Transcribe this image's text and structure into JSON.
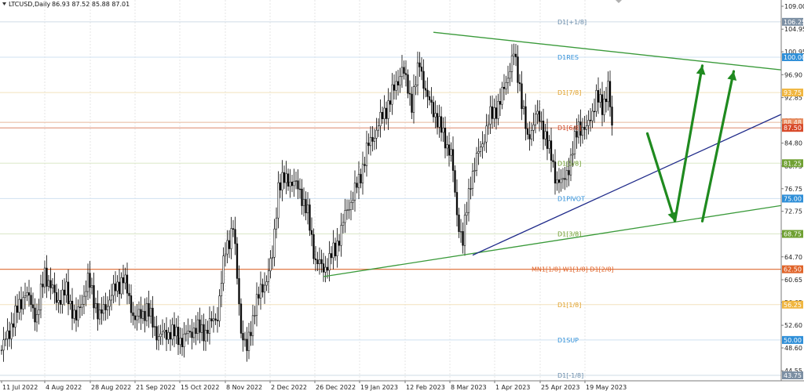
{
  "header": {
    "symbol": "LTCUSD,Daily",
    "ohlc": "86.93 87.52 85.88 87.01"
  },
  "chart_data": {
    "type": "candlestick",
    "title": "",
    "ylim": [
      43.75,
      109.0
    ],
    "y_ticks": [
      109.0,
      104.95,
      100.95,
      96.9,
      92.85,
      88.8,
      84.8,
      80.75,
      76.75,
      72.75,
      68.75,
      64.7,
      60.65,
      56.65,
      52.6,
      48.6,
      44.55
    ],
    "x_tick_labels": [
      "11 Jul 2022",
      "4 Aug 2022",
      "28 Aug 2022",
      "21 Sep 2022",
      "15 Oct 2022",
      "8 Nov 2022",
      "2 Dec 2022",
      "26 Dec 2022",
      "19 Jan 2023",
      "12 Feb 2023",
      "8 Mar 2023",
      "1 Apr 2023",
      "25 Apr 2023",
      "19 May 2023"
    ],
    "grid": true,
    "price_anchors": [
      [
        0,
        48.2
      ],
      [
        6,
        53.5
      ],
      [
        12,
        58.5
      ],
      [
        18,
        54.0
      ],
      [
        22,
        62.0
      ],
      [
        28,
        57.0
      ],
      [
        33,
        58.5
      ],
      [
        38,
        53.5
      ],
      [
        44,
        60.5
      ],
      [
        50,
        54.0
      ],
      [
        56,
        58.0
      ],
      [
        62,
        61.0
      ],
      [
        68,
        53.5
      ],
      [
        74,
        55.5
      ],
      [
        80,
        50.5
      ],
      [
        86,
        51.5
      ],
      [
        92,
        50.0
      ],
      [
        98,
        52.0
      ],
      [
        104,
        51.5
      ],
      [
        110,
        54.5
      ],
      [
        114,
        66.0
      ],
      [
        118,
        70.0
      ],
      [
        122,
        52.0
      ],
      [
        125,
        48.0
      ],
      [
        129,
        56.0
      ],
      [
        134,
        60.0
      ],
      [
        138,
        64.5
      ],
      [
        141,
        77.5
      ],
      [
        146,
        78.5
      ],
      [
        152,
        76.5
      ],
      [
        156,
        72.0
      ],
      [
        160,
        64.0
      ],
      [
        164,
        62.5
      ],
      [
        170,
        66.0
      ],
      [
        176,
        73.0
      ],
      [
        182,
        78.0
      ],
      [
        186,
        83.5
      ],
      [
        192,
        88.0
      ],
      [
        198,
        92.5
      ],
      [
        204,
        98.0
      ],
      [
        209,
        92.0
      ],
      [
        213,
        99.0
      ],
      [
        217,
        92.5
      ],
      [
        221,
        90.0
      ],
      [
        225,
        86.0
      ],
      [
        229,
        83.0
      ],
      [
        232,
        72.0
      ],
      [
        235,
        67.5
      ],
      [
        239,
        78.5
      ],
      [
        244,
        84.0
      ],
      [
        249,
        89.5
      ],
      [
        254,
        92.0
      ],
      [
        258,
        97.0
      ],
      [
        261,
        100.5
      ],
      [
        264,
        95.0
      ],
      [
        268,
        85.0
      ],
      [
        272,
        90.0
      ],
      [
        277,
        86.5
      ],
      [
        282,
        79.0
      ],
      [
        286,
        77.5
      ],
      [
        290,
        82.0
      ],
      [
        294,
        88.0
      ],
      [
        298,
        87.0
      ],
      [
        303,
        93.0
      ],
      [
        306,
        91.0
      ],
      [
        309,
        95.0
      ],
      [
        311,
        87.0
      ]
    ],
    "levels": [
      {
        "label": "D1[+1/8]",
        "value": 106.25,
        "text_color": "#6a8caa",
        "line_color": "#cfdbe6",
        "tag_bg": "#7c8fa3"
      },
      {
        "label": "D1RES",
        "value": 100.0,
        "text_color": "#2f8fd8",
        "line_color": "#cfe1f1",
        "tag_bg": "#2f8fd8"
      },
      {
        "label": "D1[7/8]",
        "value": 93.75,
        "text_color": "#e0a02a",
        "line_color": "#f2e2bd",
        "tag_bg": "#f0b640"
      },
      {
        "label": "",
        "value": 88.48,
        "text_color": "#d06a3a",
        "line_color": "#e8b79a",
        "tag_bg": "#e88b5e"
      },
      {
        "label": "",
        "value": 87.5,
        "text_color": "#d04a2a",
        "line_color": "#e49d86",
        "tag_bg": "#d84a2a"
      },
      {
        "label": "D1[6/8]",
        "value": 87.5,
        "text_color": "#d04a2a",
        "line_color": "#e49d86",
        "tag_bg": "#d84a2a"
      },
      {
        "label": "D1[5/8]",
        "value": 81.25,
        "text_color": "#6a9a2a",
        "line_color": "#dbe8c8",
        "tag_bg": "#6fa032"
      },
      {
        "label": "D1PIVOT",
        "value": 75.0,
        "text_color": "#2f8fd8",
        "line_color": "#cfe1f1",
        "tag_bg": "#2f8fd8"
      },
      {
        "label": "D1[3/8]",
        "value": 68.75,
        "text_color": "#6a9a2a",
        "line_color": "#dbe8c8",
        "tag_bg": "#6fa032"
      },
      {
        "label": "MN1[1/8] W1[1/8] D1[2/8]",
        "value": 62.5,
        "text_color": "#e0642a",
        "line_color": "#e07a48",
        "tag_bg": "#e0642a"
      },
      {
        "label": "D1[1/8]",
        "value": 56.25,
        "text_color": "#e0a02a",
        "line_color": "#f2e2bd",
        "tag_bg": "#f0b640"
      },
      {
        "label": "D1SUP",
        "value": 50.0,
        "text_color": "#2f8fd8",
        "line_color": "#cfe1f1",
        "tag_bg": "#2f8fd8"
      },
      {
        "label": "D1[-1/8]",
        "value": 43.75,
        "text_color": "#6a8caa",
        "line_color": "#cfdbe6",
        "tag_bg": "#7c8fa3"
      }
    ],
    "trendlines": [
      {
        "name": "upper",
        "color": "#3a9a3a",
        "from": [
          220,
          104.4
        ],
        "to": [
          420,
          96.9
        ]
      },
      {
        "name": "lower",
        "color": "#3a9a3a",
        "from": [
          164,
          61.2
        ],
        "to": [
          420,
          75.0
        ]
      },
      {
        "name": "support",
        "color": "#1f2a8a",
        "from": [
          240,
          65.0
        ],
        "to": [
          420,
          93.5
        ]
      }
    ],
    "arrows": [
      {
        "points": [
          [
            329,
            86.5
          ],
          [
            343,
            71.0
          ],
          [
            357,
            98.5
          ]
        ],
        "color": "#1f8a1f"
      },
      {
        "points": [
          [
            357,
            71.0
          ],
          [
            373,
            97.5
          ]
        ],
        "color": "#1f8a1f"
      }
    ]
  }
}
